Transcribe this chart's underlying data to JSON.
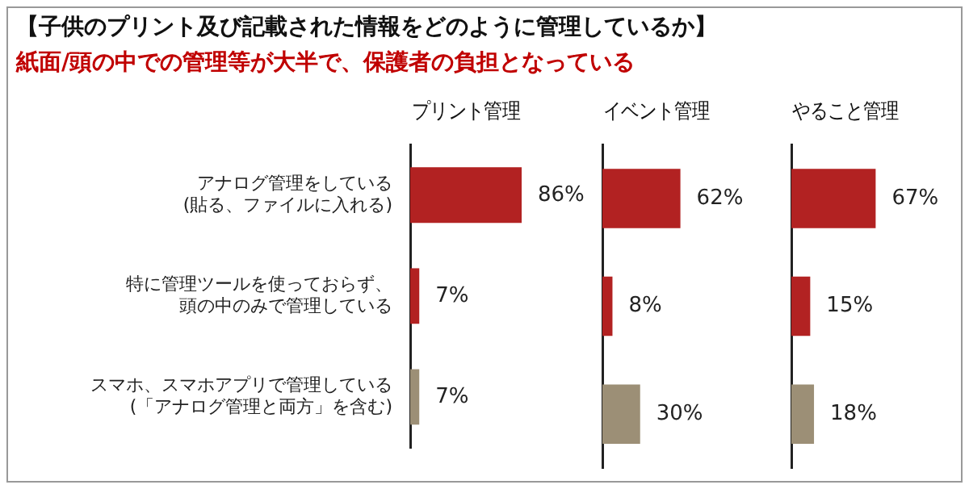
{
  "chart_data": [
    {
      "type": "bar",
      "orientation": "horizontal",
      "title": "【子供のプリント及び記載された情報をどのように管理しているか】",
      "subtitle": "紙面/頭の中での管理等が大半で、保護者の負担となっている",
      "xlabel": "プリント管理",
      "categories": [
        "アナログ管理をしている(貼る、ファイルに入れる)",
        "特に管理ツールを使っておらず、頭の中のみで管理している",
        "スマホ、スマホアプリで管理している(「アナログ管理と両方」を含む)"
      ],
      "values": [
        86,
        7,
        7
      ],
      "colors": [
        "#b22222",
        "#b22222",
        "#9c8f76"
      ],
      "value_labels": [
        "86%",
        "7%",
        "7%"
      ],
      "tick_labels": "y"
    },
    {
      "type": "bar",
      "orientation": "horizontal",
      "xlabel": "イベント管理",
      "categories": [
        null,
        null,
        null
      ],
      "values": [
        62,
        8,
        30
      ],
      "colors": [
        "#b22222",
        "#b22222",
        "#9c8f76"
      ],
      "value_labels": [
        "62%",
        "8%",
        "30%"
      ],
      "tick_labels": false
    },
    {
      "type": "bar",
      "orientation": "horizontal",
      "xlabel": "やること管理",
      "categories": [
        null,
        null,
        null
      ],
      "values": [
        67,
        15,
        18
      ],
      "colors": [
        "#b22222",
        "#b22222",
        "#9c8f76"
      ],
      "value_labels": [
        "67%",
        "15%",
        "18%"
      ],
      "tick_labels": false
    }
  ]
}
